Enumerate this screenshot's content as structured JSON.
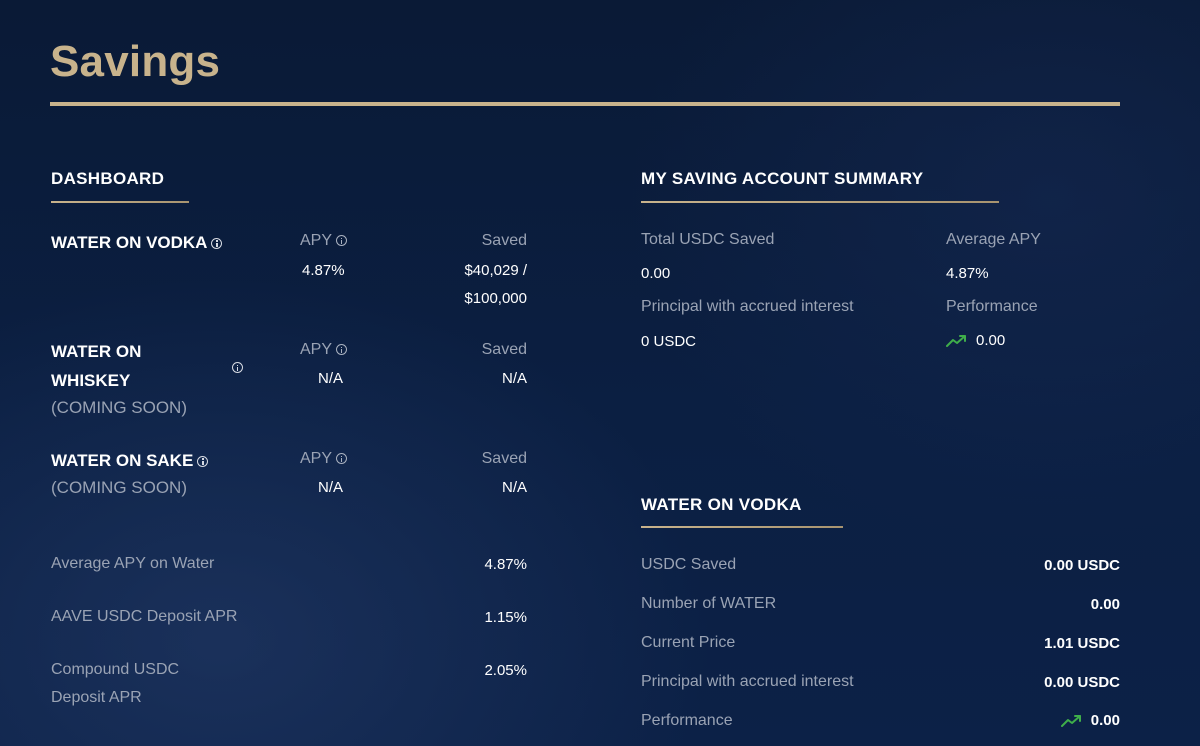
{
  "page": {
    "title": "Savings"
  },
  "dashboard": {
    "heading": "DASHBOARD",
    "products": [
      {
        "name": "WATER ON VODKA",
        "apy_label": "APY",
        "apy_value": "4.87%",
        "saved_label": "Saved",
        "saved_value_line1": "$40,029 /",
        "saved_value_line2": "$100,000"
      },
      {
        "name_line1": "WATER ON",
        "name_line2": "WHISKEY",
        "status": "(COMING SOON)",
        "apy_label": "APY",
        "apy_value": "N/A",
        "saved_label": "Saved",
        "saved_value": "N/A"
      },
      {
        "name": "WATER ON SAKE",
        "status": "(COMING SOON)",
        "apy_label": "APY",
        "apy_value": "N/A",
        "saved_label": "Saved",
        "saved_value": "N/A"
      }
    ],
    "stats": [
      {
        "label": "Average APY on Water",
        "value": "4.87%"
      },
      {
        "label": "AAVE USDC Deposit APR",
        "value": "1.15%"
      },
      {
        "label_line1": "Compound USDC",
        "label_line2": "Deposit APR",
        "value": "2.05%"
      }
    ]
  },
  "summary": {
    "heading": "MY SAVING ACCOUNT SUMMARY",
    "total_saved_label": "Total USDC Saved",
    "total_saved_value": "0.00",
    "average_apy_label": "Average APY",
    "average_apy_value": "4.87%",
    "principal_label": "Principal with accrued interest",
    "principal_value": "0 USDC",
    "performance_label": "Performance",
    "performance_value": "0.00",
    "performance_icon": "trend-up-icon"
  },
  "vodka": {
    "heading": "WATER ON VODKA",
    "rows": [
      {
        "label": "USDC Saved",
        "value": "0.00 USDC"
      },
      {
        "label": "Number of WATER",
        "value": "0.00"
      },
      {
        "label": "Current Price",
        "value": "1.01 USDC"
      },
      {
        "label": "Principal with accrued interest",
        "value": "0.00 USDC"
      },
      {
        "label": "Performance",
        "value": "0.00"
      }
    ]
  },
  "colors": {
    "accent_gold": "#c8b38c",
    "trend_green": "#3fae4a",
    "muted_text": "#9aa3b4"
  }
}
